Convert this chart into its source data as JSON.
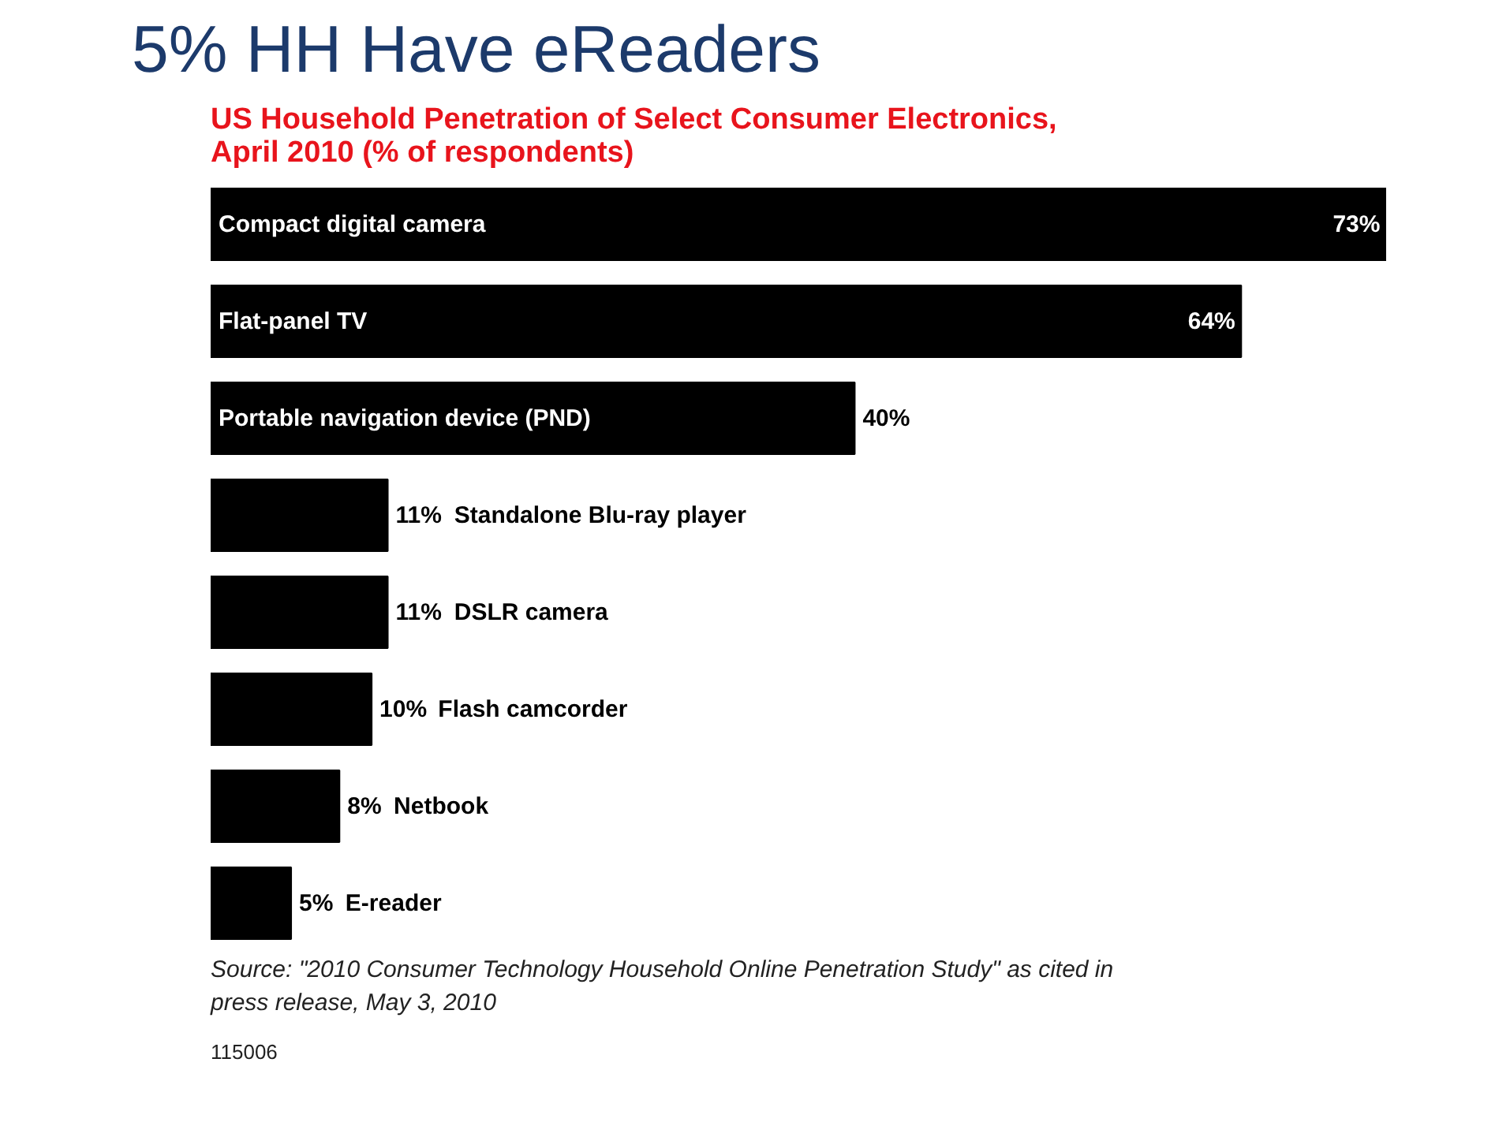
{
  "chart_data": {
    "type": "bar",
    "orientation": "horizontal",
    "title": "5% HH Have eReaders",
    "subtitle": "US Household Penetration of Select Consumer Electronics, April 2010 (% of respondents)",
    "categories": [
      "Compact digital camera",
      "Flat-panel TV",
      "Portable navigation device (PND)",
      "Standalone Blu-ray player",
      "DSLR camera",
      "Flash camcorder",
      "Netbook",
      "E-reader"
    ],
    "values": [
      73,
      64,
      40,
      11,
      11,
      10,
      8,
      5
    ],
    "value_labels": [
      "73%",
      "64%",
      "40%",
      "11%",
      "11%",
      "10%",
      "8%",
      "5%"
    ],
    "color": "#000000",
    "annotations": [
      "Source: \"2010 Consumer Technology Household Online Penetration Study\" as cited in press release, May 3, 2010",
      "115006"
    ]
  }
}
